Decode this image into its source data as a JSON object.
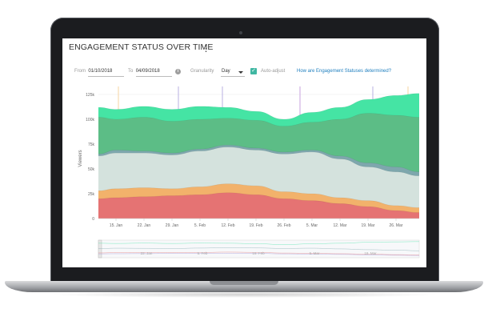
{
  "header": {
    "title": "ENGAGEMENT STATUS OVER TIME",
    "menu_icon": "kebab-menu-icon"
  },
  "controls": {
    "from_label": "From",
    "from_value": "01/10/2018",
    "to_label": "To",
    "to_value": "04/09/2018",
    "granularity_label": "Granularity",
    "granularity_value": "Day",
    "auto_adjust_label": "Auto-adjust",
    "auto_adjust_checked": true,
    "help_link": "How are Engagement Statuses determined?"
  },
  "chart_data": {
    "type": "area",
    "ylabel": "Viewers",
    "ylim": [
      0,
      125000
    ],
    "y_ticks": [
      "0",
      "25k",
      "50k",
      "75k",
      "100k",
      "125k"
    ],
    "x_ticks": [
      "15. Jan",
      "22. Jan",
      "29. Jan",
      "5. Feb",
      "12. Feb",
      "19. Feb",
      "26. Feb",
      "5. Mar",
      "12. Mar",
      "19. Mar",
      "26. Mar"
    ],
    "navigator_ticks": [
      "22. Jan",
      "5. Feb",
      "19. Feb",
      "5. Mar",
      "19. Mar"
    ],
    "x": [
      "10. Jan",
      "15. Jan",
      "22. Jan",
      "29. Jan",
      "5. Feb",
      "12. Feb",
      "19. Feb",
      "26. Feb",
      "5. Mar",
      "12. Mar",
      "19. Mar",
      "26. Mar",
      "30. Mar"
    ],
    "stacked_totals": [
      {
        "name": "",
        "color": "#e57373",
        "values": [
          20000,
          21000,
          22000,
          23000,
          24000,
          26000,
          24000,
          20000,
          18000,
          15000,
          12000,
          8000,
          6000
        ]
      },
      {
        "name": "",
        "color": "#f2b26b",
        "values": [
          28000,
          30000,
          31000,
          30000,
          32000,
          35000,
          33000,
          27000,
          25000,
          21000,
          18000,
          13000,
          11000
        ]
      },
      {
        "name": "",
        "color": "#d4e2dd",
        "values": [
          63000,
          66000,
          66000,
          64000,
          68000,
          72000,
          69000,
          65000,
          67000,
          60000,
          52000,
          47000,
          43000
        ]
      },
      {
        "name": "",
        "color": "#7ea7ad",
        "values": [
          65000,
          69000,
          68000,
          66000,
          70000,
          74000,
          71000,
          67000,
          69000,
          63000,
          56000,
          52000,
          47000
        ]
      },
      {
        "name": "",
        "color": "#5cbd86",
        "values": [
          102000,
          100000,
          102000,
          98000,
          100000,
          101000,
          99000,
          93000,
          97000,
          100000,
          106000,
          104000,
          102000
        ]
      },
      {
        "name": "",
        "color": "#45e4a4",
        "values": [
          112000,
          110000,
          113000,
          110000,
          113000,
          112000,
          108000,
          100000,
          107000,
          112000,
          120000,
          124000,
          126000
        ]
      }
    ]
  },
  "colors": {
    "accent": "#3fb7a2",
    "link": "#1f7fbf"
  }
}
